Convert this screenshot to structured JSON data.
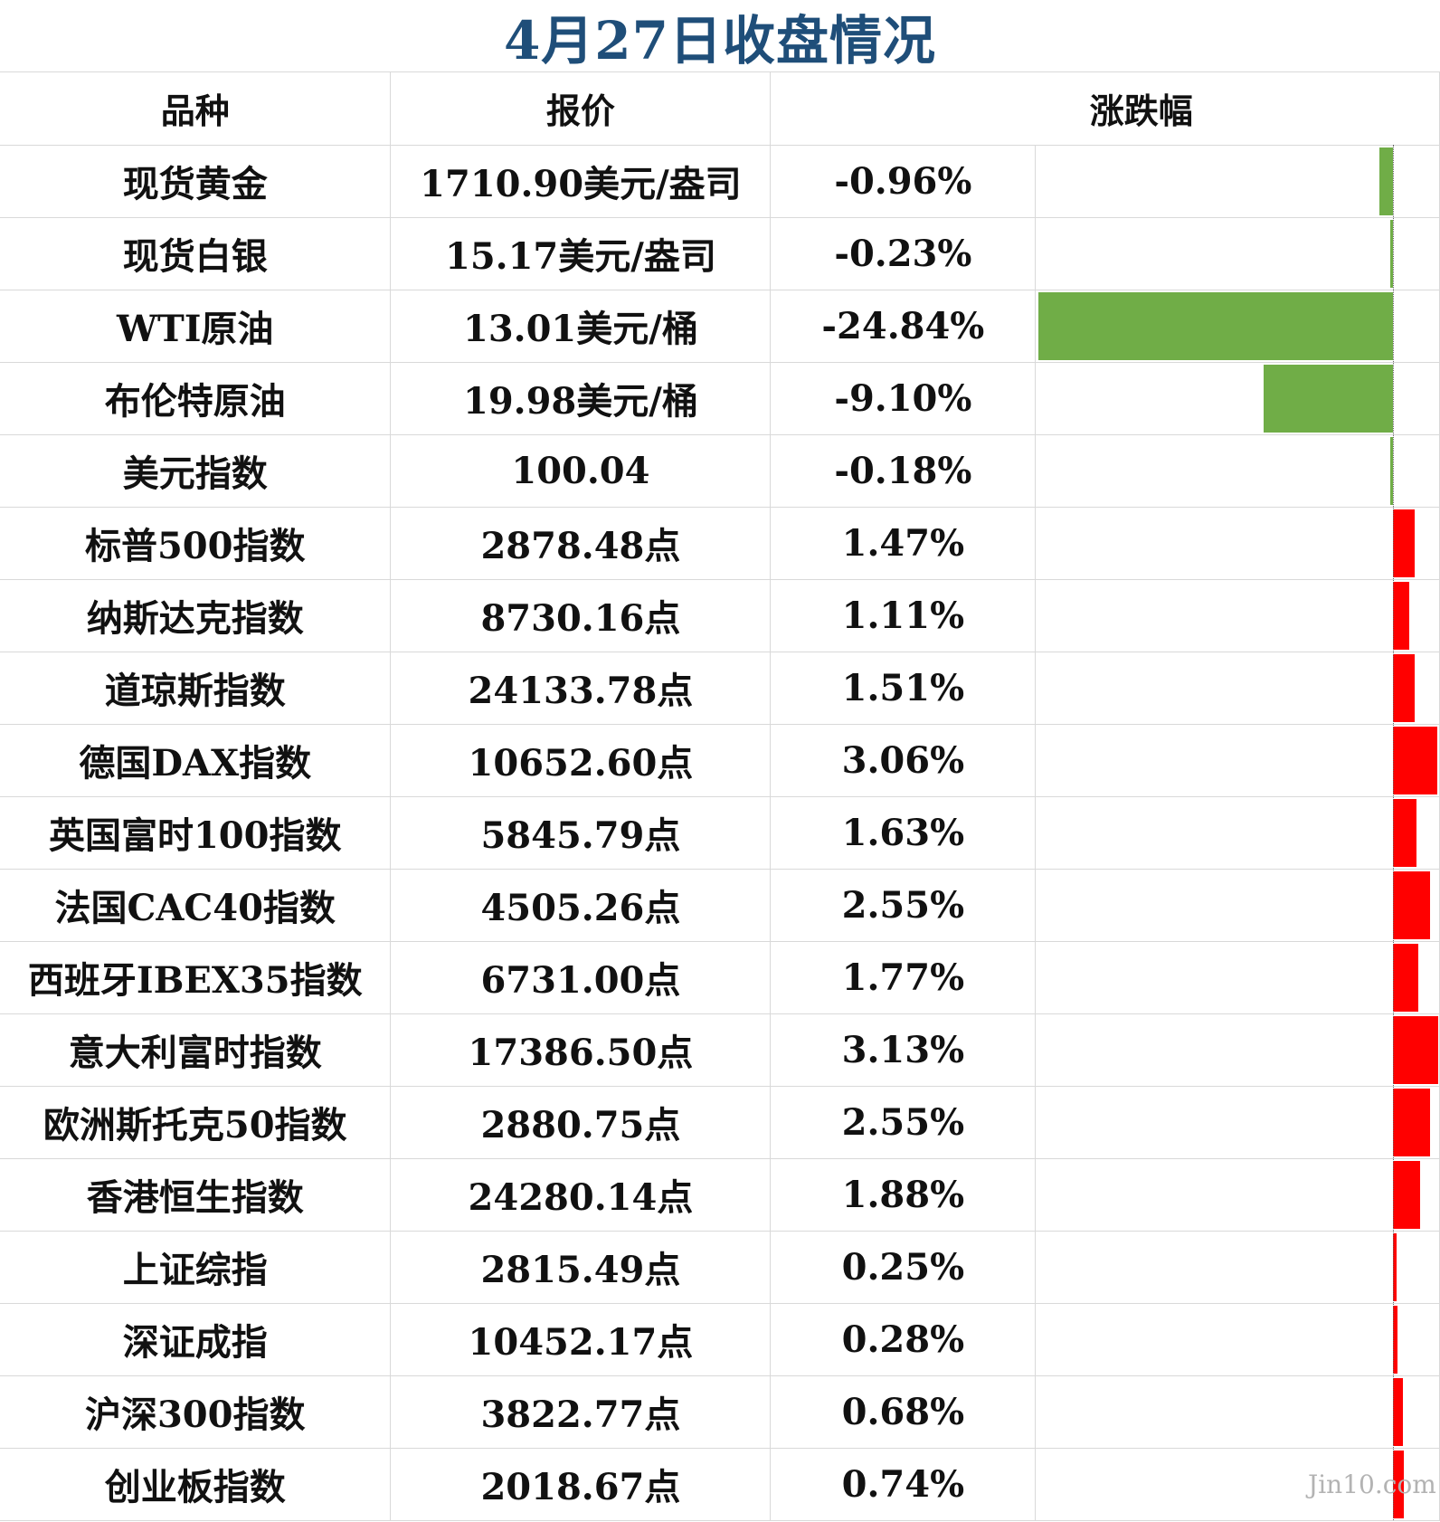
{
  "title": "4月27日收盘情况",
  "header": {
    "name": "品种",
    "price": "报价",
    "change": "涨跌幅"
  },
  "colors": {
    "up": "#ff0000",
    "down": "#70ad47",
    "title": "#1f4e79"
  },
  "watermark": "Jin10.com",
  "rows": [
    {
      "name": "现货黄金",
      "price": "1710.90美元/盎司",
      "change_label": "-0.96%",
      "change": -0.96
    },
    {
      "name": "现货白银",
      "price": "15.17美元/盎司",
      "change_label": "-0.23%",
      "change": -0.23
    },
    {
      "name": "WTI原油",
      "price": "13.01美元/桶",
      "change_label": "-24.84%",
      "change": -24.84
    },
    {
      "name": "布伦特原油",
      "price": "19.98美元/桶",
      "change_label": "-9.10%",
      "change": -9.1
    },
    {
      "name": "美元指数",
      "price": "100.04",
      "change_label": "-0.18%",
      "change": -0.18
    },
    {
      "name": "标普500指数",
      "price": "2878.48点",
      "change_label": "1.47%",
      "change": 1.47
    },
    {
      "name": "纳斯达克指数",
      "price": "8730.16点",
      "change_label": "1.11%",
      "change": 1.11
    },
    {
      "name": "道琼斯指数",
      "price": "24133.78点",
      "change_label": "1.51%",
      "change": 1.51
    },
    {
      "name": "德国DAX指数",
      "price": "10652.60点",
      "change_label": "3.06%",
      "change": 3.06
    },
    {
      "name": "英国富时100指数",
      "price": "5845.79点",
      "change_label": "1.63%",
      "change": 1.63
    },
    {
      "name": "法国CAC40指数",
      "price": "4505.26点",
      "change_label": "2.55%",
      "change": 2.55
    },
    {
      "name": "西班牙IBEX35指数",
      "price": "6731.00点",
      "change_label": "1.77%",
      "change": 1.77
    },
    {
      "name": "意大利富时指数",
      "price": "17386.50点",
      "change_label": "3.13%",
      "change": 3.13
    },
    {
      "name": "欧洲斯托克50指数",
      "price": "2880.75点",
      "change_label": "2.55%",
      "change": 2.55
    },
    {
      "name": "香港恒生指数",
      "price": "24280.14点",
      "change_label": "1.88%",
      "change": 1.88
    },
    {
      "name": "上证综指",
      "price": "2815.49点",
      "change_label": "0.25%",
      "change": 0.25
    },
    {
      "name": "深证成指",
      "price": "10452.17点",
      "change_label": "0.28%",
      "change": 0.28
    },
    {
      "name": "沪深300指数",
      "price": "3822.77点",
      "change_label": "0.68%",
      "change": 0.68
    },
    {
      "name": "创业板指数",
      "price": "2018.67点",
      "change_label": "0.74%",
      "change": 0.74
    }
  ]
}
